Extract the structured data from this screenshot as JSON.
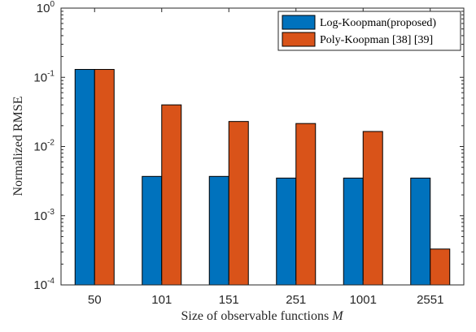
{
  "chart_data": {
    "type": "bar",
    "xlabel": "Size of observable functions",
    "xlabel_var": "M",
    "ylabel": "Normalized RMSE",
    "y_scale": "log",
    "ylim": [
      0.0001,
      1
    ],
    "y_ticks": [
      {
        "base": "10",
        "exp": "0",
        "value": 1
      },
      {
        "base": "10",
        "exp": "-1",
        "value": 0.1
      },
      {
        "base": "10",
        "exp": "-2",
        "value": 0.01
      },
      {
        "base": "10",
        "exp": "-3",
        "value": 0.001
      },
      {
        "base": "10",
        "exp": "-4",
        "value": 0.0001
      }
    ],
    "categories": [
      "50",
      "101",
      "151",
      "251",
      "1001",
      "2551"
    ],
    "series": [
      {
        "name": "Log-Koopman(proposed)",
        "color": "#0072BD",
        "values": [
          0.13,
          0.0037,
          0.0037,
          0.0035,
          0.0035,
          0.0035
        ]
      },
      {
        "name": "Poly-Koopman [38] [39]",
        "color": "#D95319",
        "values": [
          0.13,
          0.04,
          0.023,
          0.0215,
          0.0165,
          0.00033
        ]
      }
    ],
    "legend_position": "top-right",
    "grid": false
  }
}
